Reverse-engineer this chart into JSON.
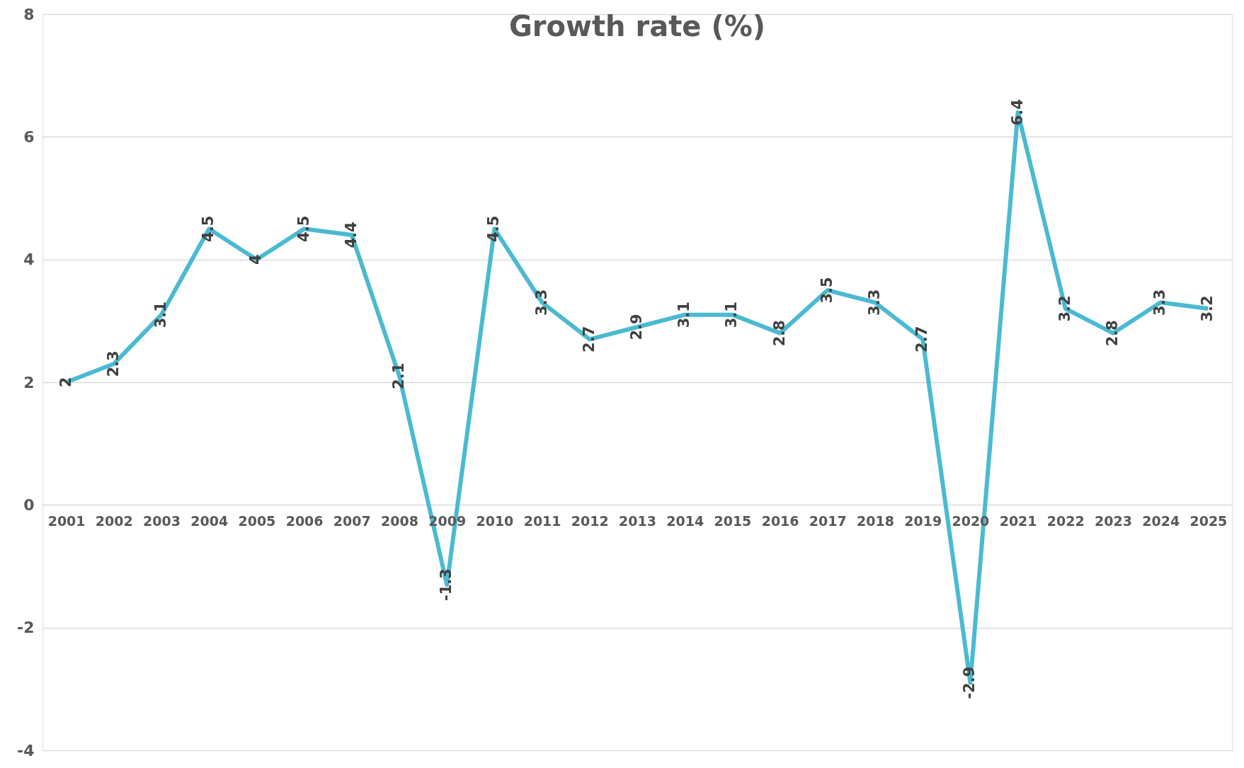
{
  "chart_data": {
    "type": "line",
    "title": "Growth rate (%)",
    "categories": [
      "2001",
      "2002",
      "2003",
      "2004",
      "2005",
      "2006",
      "2007",
      "2008",
      "2009",
      "2010",
      "2011",
      "2012",
      "2013",
      "2014",
      "2015",
      "2016",
      "2017",
      "2018",
      "2019",
      "2020",
      "2021",
      "2022",
      "2023",
      "2024",
      "2025"
    ],
    "series": [
      {
        "color": "#4bbad1",
        "values": [
          2,
          2.3,
          3.1,
          4.5,
          4,
          4.5,
          4.4,
          2.1,
          -1.3,
          4.5,
          3.3,
          2.7,
          2.9,
          3.1,
          3.1,
          2.8,
          3.5,
          3.3,
          2.7,
          -2.9,
          6.4,
          3.2,
          2.8,
          3.3,
          3.2
        ]
      }
    ],
    "ylim": [
      -4,
      8
    ],
    "yticks": [
      -4,
      -2,
      0,
      2,
      4,
      6,
      8
    ],
    "grid": "y",
    "data_labels": true,
    "marker": "none",
    "line_style": "solid"
  }
}
